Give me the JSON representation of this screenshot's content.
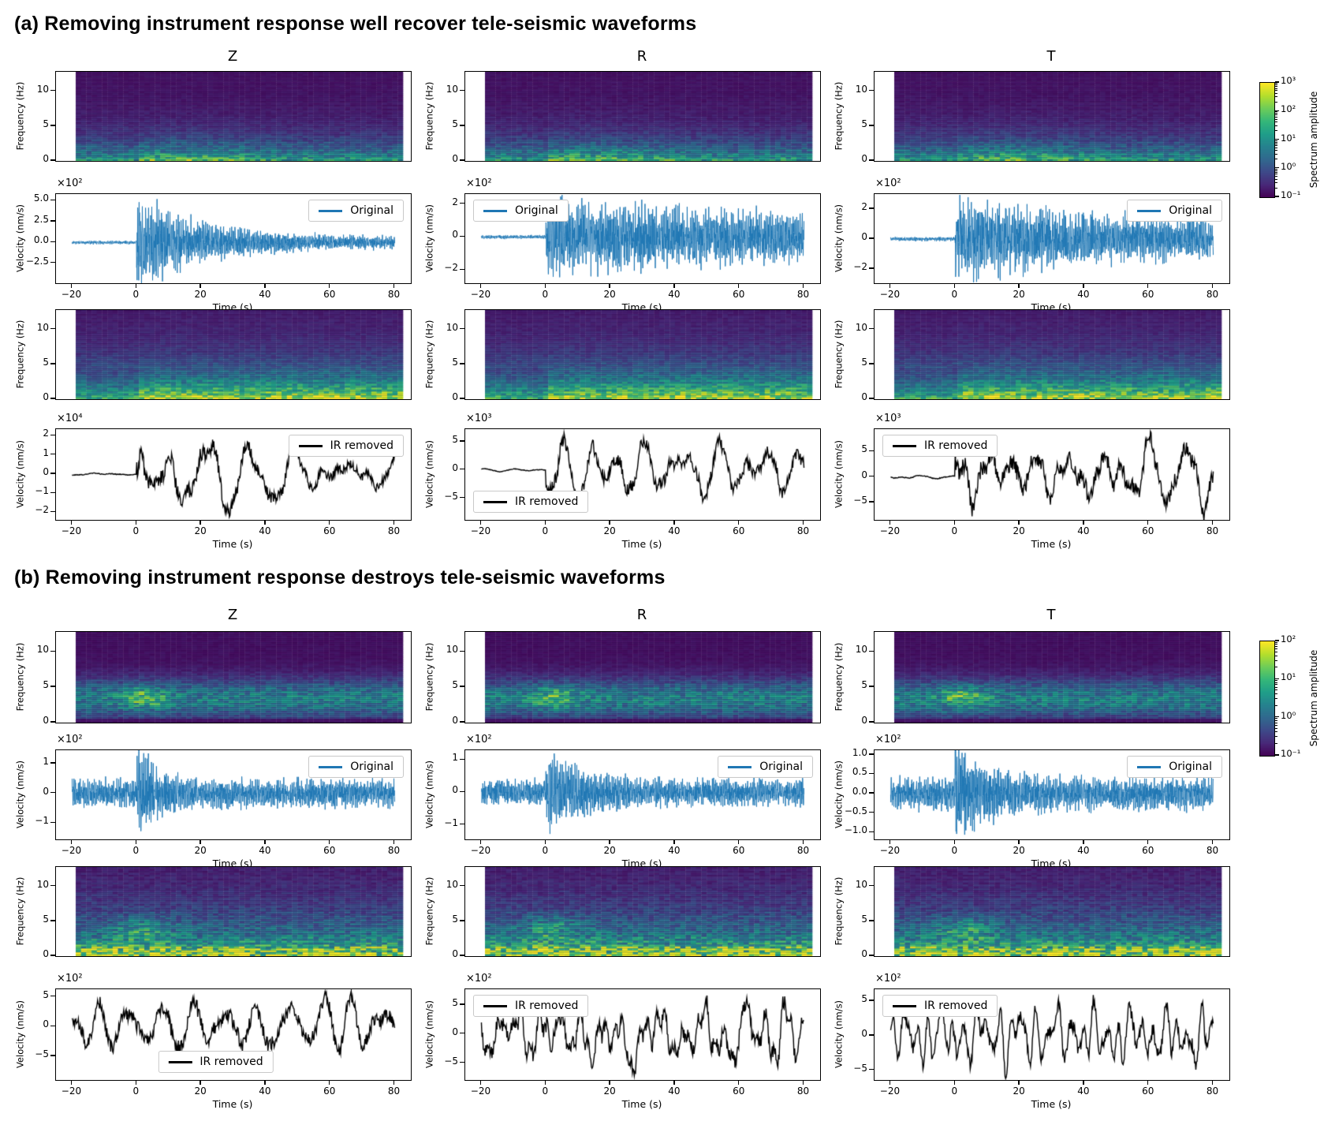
{
  "figure": {
    "panel_a_title": "(a) Removing instrument response well recover tele-seismic waveforms",
    "panel_b_title": "(b) Removing instrument response destroys tele-seismic waveforms"
  },
  "chart_data": [
    {
      "panel": "a",
      "type": "heatmap",
      "title": "(a) Removing instrument response well recover tele-seismic waveforms",
      "layout_note": "3 columns (Z, R, T) x 4 rows: original spectrogram, original waveform, IR-removed spectrogram, IR-removed waveform",
      "column_titles": [
        "Z",
        "R",
        "T"
      ],
      "time_axis": {
        "label": "Time (s)",
        "tick_labels": [
          "−20",
          "0",
          "20",
          "40",
          "60",
          "80"
        ],
        "tick_values": [
          -20,
          0,
          20,
          40,
          60,
          80
        ],
        "lim": [
          -25,
          85
        ]
      },
      "spectrogram_axis": {
        "ylabel": "Frequency (Hz)",
        "tick_labels": [
          "0",
          "5",
          "10"
        ],
        "tick_values": [
          0,
          5,
          10
        ],
        "ylim": [
          0,
          12.8
        ]
      },
      "colorbar": {
        "label": "Spectrum amplitude",
        "colormap": "viridis",
        "tick_labels": [
          "10³",
          "10²",
          "10¹",
          "10⁰",
          "10⁻¹"
        ],
        "tick_positions": [
          1,
          0.75,
          0.5,
          0.25,
          0
        ],
        "decades": 4
      },
      "columns": [
        {
          "name": "Z",
          "spec_original": {
            "style": "a-original",
            "seed": 101,
            "description": "energy concentrated below ~5 Hz, brighter green patch 0-35 s"
          },
          "original": {
            "ylabel": "Velocity (nm/s)",
            "offset": "×10²",
            "tick_labels": [
              "5.0",
              "2.5",
              "0.0",
              "−2.5"
            ],
            "tick_values": [
              5,
              2.5,
              0,
              -2.5
            ],
            "ylim": [
              -4.9,
              5.8
            ],
            "peak_amplitude": 5.2,
            "line_color": "#1f77b4",
            "legend": {
              "label": "Original",
              "position": "top-right"
            },
            "character": {
              "kind": "teleseismic",
              "pre_noise": 0.035,
              "decay_tau": 20,
              "coda_level": 0.12
            },
            "seed": 102
          },
          "spec_ir": {
            "style": "a-ir-removed",
            "seed": 103,
            "description": "strong low-frequency energy, yellow below ~2 Hz after onset"
          },
          "ir_removed": {
            "ylabel": "Velocity (nm/s)",
            "offset": "×10⁴",
            "tick_labels": [
              "2",
              "1",
              "0",
              "−1",
              "−2"
            ],
            "tick_values": [
              2,
              1,
              0,
              -1,
              -2
            ],
            "ylim": [
              -2.4,
              2.35
            ],
            "peak_amplitude": 2.25,
            "line_color": "#000000",
            "legend": {
              "label": "IR removed",
              "position": "top-right"
            },
            "character": {
              "kind": "smooth-teleseismic",
              "pre_noise": 0.03,
              "decay_tau": 40,
              "coda_level": 0.3
            },
            "seed": 104
          }
        },
        {
          "name": "R",
          "spec_original": {
            "style": "a-original",
            "seed": 111,
            "description": "energy below ~5 Hz, sustained through window"
          },
          "original": {
            "ylabel": "Velocity (nm/s)",
            "offset": "×10²",
            "tick_labels": [
              "2",
              "0",
              "−2"
            ],
            "tick_values": [
              2,
              0,
              -2
            ],
            "ylim": [
              -2.8,
              2.6
            ],
            "peak_amplitude": 2.55,
            "line_color": "#1f77b4",
            "legend": {
              "label": "Original",
              "position": "top-left"
            },
            "character": {
              "kind": "teleseismic",
              "pre_noise": 0.05,
              "decay_tau": 80,
              "coda_level": 0.5
            },
            "seed": 112
          },
          "spec_ir": {
            "style": "a-ir-removed",
            "seed": 113,
            "description": "yellow low-frequency band after onset"
          },
          "ir_removed": {
            "ylabel": "Velocity (nm/s)",
            "offset": "×10³",
            "tick_labels": [
              "5",
              "0",
              "−5"
            ],
            "tick_values": [
              5,
              0,
              -5
            ],
            "ylim": [
              -8.8,
              7.2
            ],
            "peak_amplitude": 7.0,
            "line_color": "#000000",
            "legend": {
              "label": "IR removed",
              "position": "bottom-left"
            },
            "character": {
              "kind": "smooth-teleseismic",
              "pre_noise": 0.04,
              "decay_tau": 90,
              "coda_level": 0.7
            },
            "seed": 114
          }
        },
        {
          "name": "T",
          "spec_original": {
            "style": "a-original",
            "seed": 121,
            "description": "energy below ~5 Hz starting at t=0"
          },
          "original": {
            "ylabel": "Velocity (nm/s)",
            "offset": "×10²",
            "tick_labels": [
              "2",
              "0",
              "−2"
            ],
            "tick_values": [
              2,
              0,
              -2
            ],
            "ylim": [
              -2.95,
              3.0
            ],
            "peak_amplitude": 2.9,
            "line_color": "#1f77b4",
            "legend": {
              "label": "Original",
              "position": "top-right"
            },
            "character": {
              "kind": "teleseismic",
              "pre_noise": 0.05,
              "decay_tau": 50,
              "coda_level": 0.35
            },
            "seed": 122
          },
          "spec_ir": {
            "style": "a-ir-removed",
            "seed": 123,
            "description": "yellow low-frequency band after onset"
          },
          "ir_removed": {
            "ylabel": "Velocity (nm/s)",
            "offset": "×10³",
            "tick_labels": [
              "5",
              "0",
              "−5"
            ],
            "tick_values": [
              5,
              0,
              -5
            ],
            "ylim": [
              -8.4,
              9.4
            ],
            "peak_amplitude": 9.0,
            "line_color": "#000000",
            "legend": {
              "label": "IR removed",
              "position": "top-left"
            },
            "character": {
              "kind": "smooth-teleseismic",
              "pre_noise": 0.04,
              "decay_tau": 80,
              "coda_level": 0.65
            },
            "seed": 124
          }
        }
      ]
    },
    {
      "panel": "b",
      "type": "heatmap",
      "title": "(b) Removing instrument response destroys tele-seismic waveforms",
      "layout_note": "3 columns (Z, R, T) x 4 rows: original spectrogram, original waveform, IR-removed spectrogram, IR-removed waveform",
      "column_titles": [
        "Z",
        "R",
        "T"
      ],
      "time_axis": {
        "label": "Time (s)",
        "tick_labels": [
          "−20",
          "0",
          "20",
          "40",
          "60",
          "80"
        ],
        "tick_values": [
          -20,
          0,
          20,
          40,
          60,
          80
        ],
        "lim": [
          -25,
          85
        ]
      },
      "spectrogram_axis": {
        "ylabel": "Frequency (Hz)",
        "tick_labels": [
          "0",
          "5",
          "10"
        ],
        "tick_values": [
          0,
          5,
          10
        ],
        "ylim": [
          0,
          12.8
        ]
      },
      "colorbar": {
        "label": "Spectrum amplitude",
        "colormap": "viridis",
        "tick_labels": [
          "10²",
          "10¹",
          "10⁰",
          "10⁻¹"
        ],
        "tick_positions": [
          1,
          0.6667,
          0.3333,
          0
        ],
        "decades": 3
      },
      "columns": [
        {
          "name": "Z",
          "spec_original": {
            "style": "b-original",
            "seed": 201,
            "description": "diffuse 2-6 Hz band across window, green blob near t=0"
          },
          "original": {
            "ylabel": "Velocity (nm/s)",
            "offset": "×10²",
            "tick_labels": [
              "1",
              "0",
              "−1"
            ],
            "tick_values": [
              1,
              0,
              -1
            ],
            "ylim": [
              -1.55,
              1.45
            ],
            "peak_amplitude": 1.35,
            "line_color": "#1f77b4",
            "legend": {
              "label": "Original",
              "position": "top-right"
            },
            "character": {
              "kind": "teleseismic",
              "pre_noise": 0.28,
              "decay_tau": 6,
              "coda_level": 0.28
            },
            "seed": 202
          },
          "spec_ir": {
            "style": "b-ir-removed",
            "seed": 203,
            "description": "bright low-frequency noise across whole window"
          },
          "ir_removed": {
            "ylabel": "Velocity (nm/s)",
            "offset": "×10²",
            "tick_labels": [
              "5",
              "0",
              "−5"
            ],
            "tick_values": [
              5,
              0,
              -5
            ],
            "ylim": [
              -9.0,
              6.3
            ],
            "peak_amplitude": 6.0,
            "line_color": "#000000",
            "legend": {
              "label": "IR removed",
              "position": "bottom-center"
            },
            "character": {
              "kind": "low-frequency-noise"
            },
            "seed": 204
          }
        },
        {
          "name": "R",
          "spec_original": {
            "style": "b-original",
            "seed": 211,
            "description": "diffuse 2-6 Hz band, green blob near t=0"
          },
          "original": {
            "ylabel": "Velocity (nm/s)",
            "offset": "×10²",
            "tick_labels": [
              "1",
              "0",
              "−1"
            ],
            "tick_values": [
              1,
              0,
              -1
            ],
            "ylim": [
              -1.45,
              1.3
            ],
            "peak_amplitude": 1.2,
            "line_color": "#1f77b4",
            "legend": {
              "label": "Original",
              "position": "top-right"
            },
            "character": {
              "kind": "teleseismic",
              "pre_noise": 0.3,
              "decay_tau": 10,
              "coda_level": 0.32
            },
            "seed": 212
          },
          "spec_ir": {
            "style": "b-ir-removed",
            "seed": 213,
            "description": "bright low-frequency noise across whole window"
          },
          "ir_removed": {
            "ylabel": "Velocity (nm/s)",
            "offset": "×10²",
            "tick_labels": [
              "5",
              "0",
              "−5"
            ],
            "tick_values": [
              5,
              0,
              -5
            ],
            "ylim": [
              -7.9,
              7.7
            ],
            "peak_amplitude": 7.2,
            "line_color": "#000000",
            "legend": {
              "label": "IR removed",
              "position": "top-left"
            },
            "character": {
              "kind": "low-frequency-noise"
            },
            "seed": 214
          }
        },
        {
          "name": "T",
          "spec_original": {
            "style": "b-original",
            "seed": 221,
            "description": "diffuse 2-6 Hz band, green blob near t=0"
          },
          "original": {
            "ylabel": "Velocity (nm/s)",
            "offset": "×10²",
            "tick_labels": [
              "1.0",
              "0.5",
              "0.0",
              "−0.5",
              "−1.0"
            ],
            "tick_values": [
              1,
              0.5,
              0,
              -0.5,
              -1
            ],
            "ylim": [
              -1.18,
              1.12
            ],
            "peak_amplitude": 1.06,
            "line_color": "#1f77b4",
            "legend": {
              "label": "Original",
              "position": "top-right"
            },
            "character": {
              "kind": "teleseismic",
              "pre_noise": 0.3,
              "decay_tau": 9,
              "coda_level": 0.3
            },
            "seed": 222
          },
          "spec_ir": {
            "style": "b-ir-removed",
            "seed": 223,
            "description": "bright low-frequency noise across whole window"
          },
          "ir_removed": {
            "ylabel": "Velocity (nm/s)",
            "offset": "×10²",
            "tick_labels": [
              "5",
              "0",
              "−5"
            ],
            "tick_values": [
              5,
              0,
              -5
            ],
            "ylim": [
              -6.4,
              6.7
            ],
            "peak_amplitude": 6.2,
            "line_color": "#000000",
            "legend": {
              "label": "IR removed",
              "position": "top-left"
            },
            "character": {
              "kind": "low-frequency-noise"
            },
            "seed": 224
          }
        }
      ]
    }
  ]
}
